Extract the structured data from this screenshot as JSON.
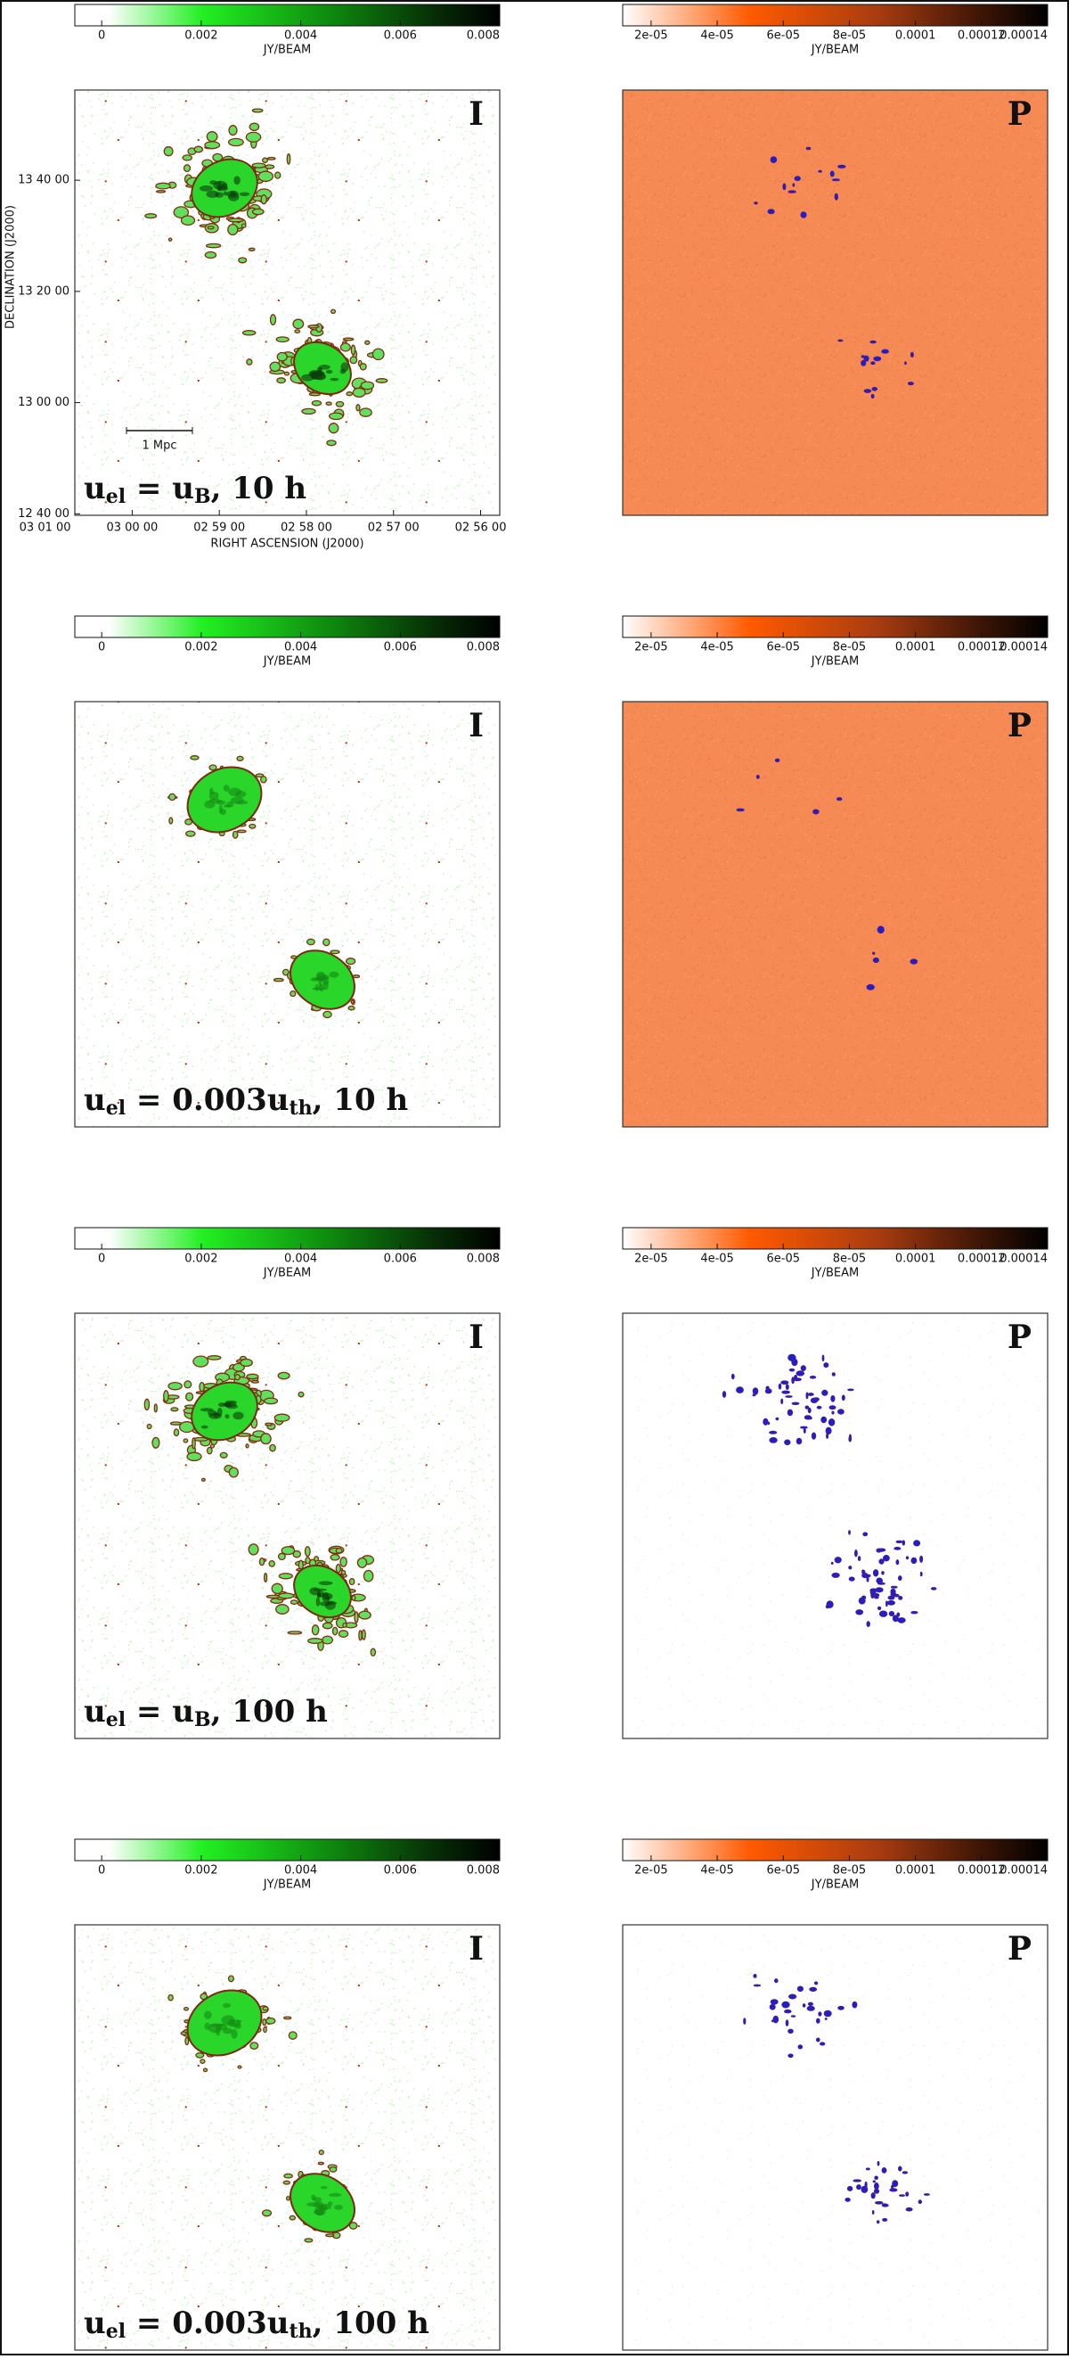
{
  "colorbars": {
    "intensity": {
      "label": "JY/BEAM",
      "range": [
        -0.00054,
        0.008
      ],
      "ticks": [
        0,
        0.002,
        0.004,
        0.006,
        0.008
      ]
    },
    "polarization": {
      "label": "JY/BEAM",
      "range": [
        1.14e-05,
        0.00014
      ],
      "ticks": [
        {
          "value": 2e-05,
          "label": "2e-05"
        },
        {
          "value": 4e-05,
          "label": "4e-05"
        },
        {
          "value": 6e-05,
          "label": "6e-05"
        },
        {
          "value": 8e-05,
          "label": "8e-05"
        },
        0.0001,
        0.00012,
        0.00014
      ]
    }
  },
  "axes": {
    "x_label": "RIGHT ASCENSION (J2000)",
    "y_label": "DECLINATION (J2000)",
    "x_ticks": [
      "03 01 00",
      "03 00 00",
      "02 59 00",
      "02 58 00",
      "02 57 00",
      "02 56 00"
    ],
    "y_ticks": [
      "13 40 00",
      "13 20 00",
      "13 00 00",
      "12 40 00"
    ],
    "scale_bar": "1 Mpc"
  },
  "stokes_labels": {
    "intensity": "I",
    "polarization": "P"
  },
  "rows": [
    {
      "annotation": [
        {
          "text": "u"
        },
        {
          "text": "el",
          "sub": true
        },
        {
          "text": " = u"
        },
        {
          "text": "B",
          "sub": true
        },
        {
          "text": ", 10 h"
        }
      ]
    },
    {
      "annotation": [
        {
          "text": "u"
        },
        {
          "text": "el",
          "sub": true
        },
        {
          "text": " = 0.003u"
        },
        {
          "text": "th",
          "sub": true
        },
        {
          "text": ", 10 h"
        }
      ]
    },
    {
      "annotation": [
        {
          "text": "u"
        },
        {
          "text": "el",
          "sub": true
        },
        {
          "text": " = u"
        },
        {
          "text": "B",
          "sub": true
        },
        {
          "text": ", 100 h"
        }
      ]
    },
    {
      "annotation": [
        {
          "text": "u"
        },
        {
          "text": "el",
          "sub": true
        },
        {
          "text": " = 0.003u"
        },
        {
          "text": "th",
          "sub": true
        },
        {
          "text": ", 100 h"
        }
      ]
    }
  ]
}
